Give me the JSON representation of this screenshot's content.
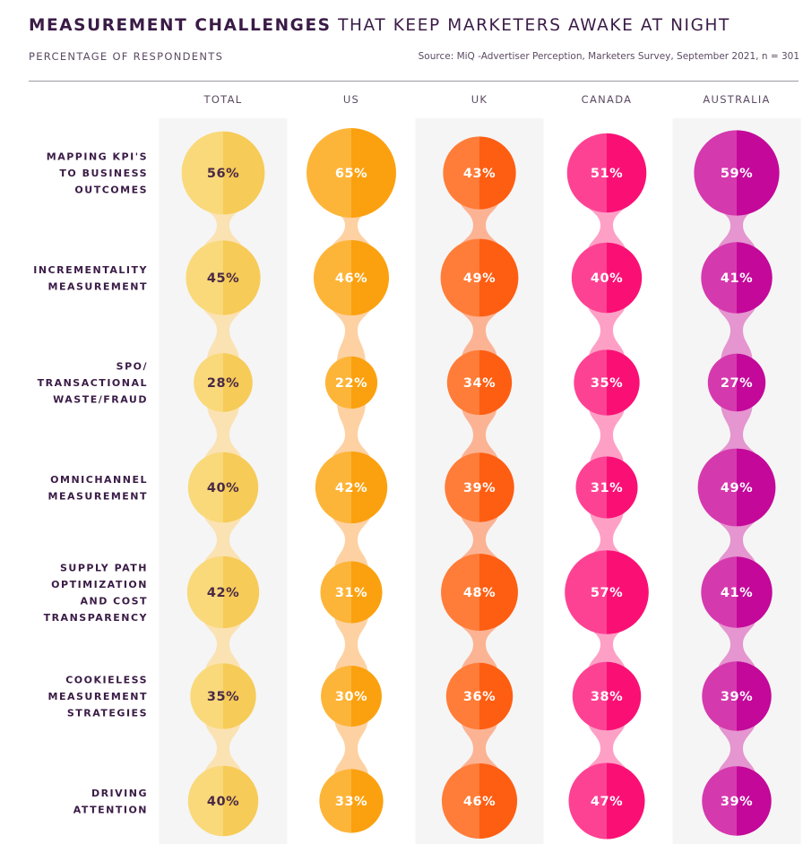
{
  "header": {
    "title_bold": "MEASUREMENT CHALLENGES",
    "title_rest": "THAT KEEP MARKETERS AWAKE AT NIGHT",
    "subtitle": "PERCENTAGE OF RESPONDENTS",
    "source": "Source: MiQ -Advertiser Perception, Marketers Survey, September 2021, n = 301"
  },
  "chart_data": {
    "type": "bubble-matrix",
    "title": "MEASUREMENT CHALLENGES THAT KEEP MARKETERS AWAKE AT NIGHT",
    "subtitle": "PERCENTAGE OF RESPONDENTS",
    "unit": "%",
    "categories": [
      [
        "MAPPING KPI'S",
        "TO BUSINESS",
        "OUTCOMES"
      ],
      [
        "INCREMENTALITY",
        "MEASUREMENT"
      ],
      [
        "SPO/",
        "TRANSACTIONAL",
        "WASTE/FRAUD"
      ],
      [
        "OMNICHANNEL",
        "MEASUREMENT"
      ],
      [
        "SUPPLY PATH",
        "OPTIMIZATION",
        "AND COST",
        "TRANSPARENCY"
      ],
      [
        "COOKIELESS",
        "MEASUREMENT",
        "STRATEGIES"
      ],
      [
        "DRIVING",
        "ATTENTION"
      ]
    ],
    "series": [
      {
        "name": "TOTAL",
        "color_light": "#f9d97a",
        "color_dark": "#f6cb57",
        "connector": "#fbe2b2",
        "text_color": "#4a2a45",
        "values": [
          56,
          45,
          28,
          40,
          42,
          35,
          40
        ]
      },
      {
        "name": "US",
        "color_light": "#fdb539",
        "color_dark": "#fba10f",
        "connector": "#fdd1a2",
        "text_color": "#ffffff",
        "values": [
          65,
          46,
          22,
          42,
          31,
          30,
          33
        ]
      },
      {
        "name": "UK",
        "color_light": "#ff7d38",
        "color_dark": "#fe5e12",
        "connector": "#fcb394",
        "text_color": "#ffffff",
        "values": [
          43,
          49,
          34,
          39,
          48,
          36,
          46
        ]
      },
      {
        "name": "CANADA",
        "color_light": "#fe4293",
        "color_dark": "#fa1075",
        "connector": "#fea0c6",
        "text_color": "#ffffff",
        "values": [
          51,
          40,
          35,
          31,
          57,
          38,
          47
        ]
      },
      {
        "name": "AUSTRALIA",
        "color_light": "#d539ae",
        "color_dark": "#c3089a",
        "connector": "#e595cf",
        "text_color": "#ffffff",
        "values": [
          59,
          41,
          27,
          49,
          41,
          39,
          39
        ]
      }
    ]
  }
}
